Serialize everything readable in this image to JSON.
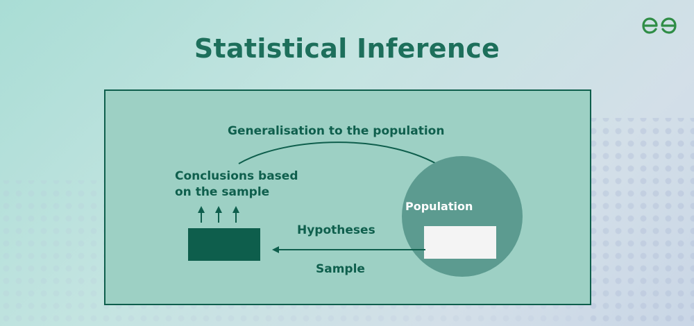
{
  "title": "Statistical Inference",
  "logo": {
    "icon": "gfg-logo-icon",
    "color": "#2f8d46"
  },
  "diagram": {
    "generalisation_label": "Generalisation to the population",
    "conclusions_line1": "Conclusions based",
    "conclusions_line2": "on the sample",
    "hypotheses_label": "Hypotheses",
    "sample_label": "Sample",
    "population_label": "Population",
    "colors": {
      "panel": "#9dd0c4",
      "border": "#0e5e4c",
      "sample_block": "#0e5e4c",
      "population_circle": "#5c9b90",
      "population_box": "#f4f4f4",
      "text": "#0f5f4d"
    }
  }
}
